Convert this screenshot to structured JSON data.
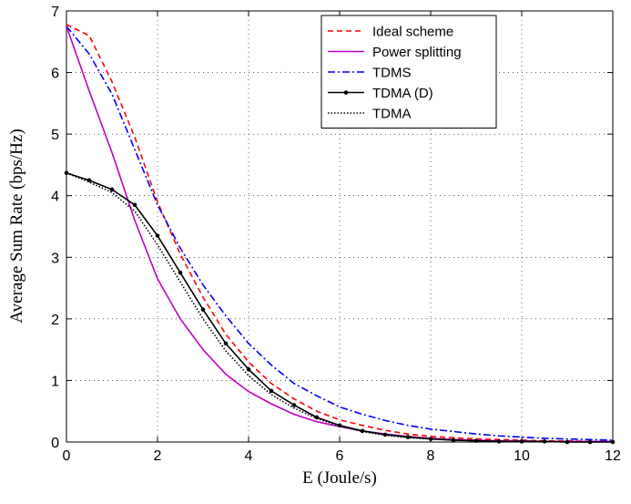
{
  "chart_data": {
    "type": "line",
    "x_label": "E (Joule/s)",
    "y_label": "Average Sum Rate (bps/Hz)",
    "x": [
      0,
      0.5,
      1,
      1.5,
      2,
      2.5,
      3,
      3.5,
      4,
      4.5,
      5,
      5.5,
      6,
      6.5,
      7,
      7.5,
      8,
      8.5,
      9,
      9.5,
      10,
      10.5,
      11,
      11.5,
      12
    ],
    "series": [
      {
        "name": "Ideal scheme",
        "color": "#ff0000",
        "style": "dashed",
        "marker": false,
        "values": [
          6.78,
          6.6,
          5.85,
          4.95,
          3.9,
          3.05,
          2.35,
          1.75,
          1.3,
          0.95,
          0.7,
          0.5,
          0.36,
          0.27,
          0.19,
          0.13,
          0.09,
          0.07,
          0.05,
          0.04,
          0.03,
          0.02,
          0.02,
          0.01,
          0.01
        ]
      },
      {
        "name": "Power splitting",
        "color": "#bf00bf",
        "style": "solid",
        "marker": false,
        "values": [
          6.75,
          5.7,
          4.7,
          3.6,
          2.65,
          2.0,
          1.5,
          1.1,
          0.82,
          0.62,
          0.45,
          0.33,
          0.25,
          0.18,
          0.13,
          0.09,
          0.06,
          0.04,
          0.03,
          0.02,
          0.02,
          0.01,
          0.01,
          0.01,
          0.01
        ]
      },
      {
        "name": "TDMS",
        "color": "#0000ff",
        "style": "dashdot",
        "marker": false,
        "values": [
          6.75,
          6.3,
          5.65,
          4.75,
          3.85,
          3.15,
          2.55,
          2.05,
          1.6,
          1.25,
          0.95,
          0.75,
          0.57,
          0.45,
          0.35,
          0.27,
          0.21,
          0.17,
          0.13,
          0.1,
          0.08,
          0.06,
          0.05,
          0.04,
          0.03
        ]
      },
      {
        "name": "TDMA (D)",
        "color": "#000000",
        "style": "solid",
        "marker": true,
        "values": [
          4.37,
          4.25,
          4.1,
          3.85,
          3.35,
          2.75,
          2.15,
          1.6,
          1.18,
          0.83,
          0.6,
          0.4,
          0.27,
          0.18,
          0.12,
          0.08,
          0.05,
          0.03,
          0.02,
          0.01,
          0.01,
          0.01,
          0,
          0,
          0
        ]
      },
      {
        "name": "TDMA",
        "color": "#000000",
        "style": "dotted",
        "marker": false,
        "values": [
          4.37,
          4.22,
          4.05,
          3.75,
          3.2,
          2.6,
          2.0,
          1.48,
          1.08,
          0.77,
          0.55,
          0.38,
          0.26,
          0.17,
          0.11,
          0.07,
          0.05,
          0.03,
          0.02,
          0.01,
          0.01,
          0.01,
          0,
          0,
          0
        ]
      }
    ],
    "xlim": [
      0,
      12
    ],
    "ylim": [
      0,
      7
    ],
    "xticks": [
      0,
      2,
      4,
      6,
      8,
      10,
      12
    ],
    "yticks": [
      0,
      1,
      2,
      3,
      4,
      5,
      6,
      7
    ],
    "grid": true,
    "legend": "upper right"
  }
}
